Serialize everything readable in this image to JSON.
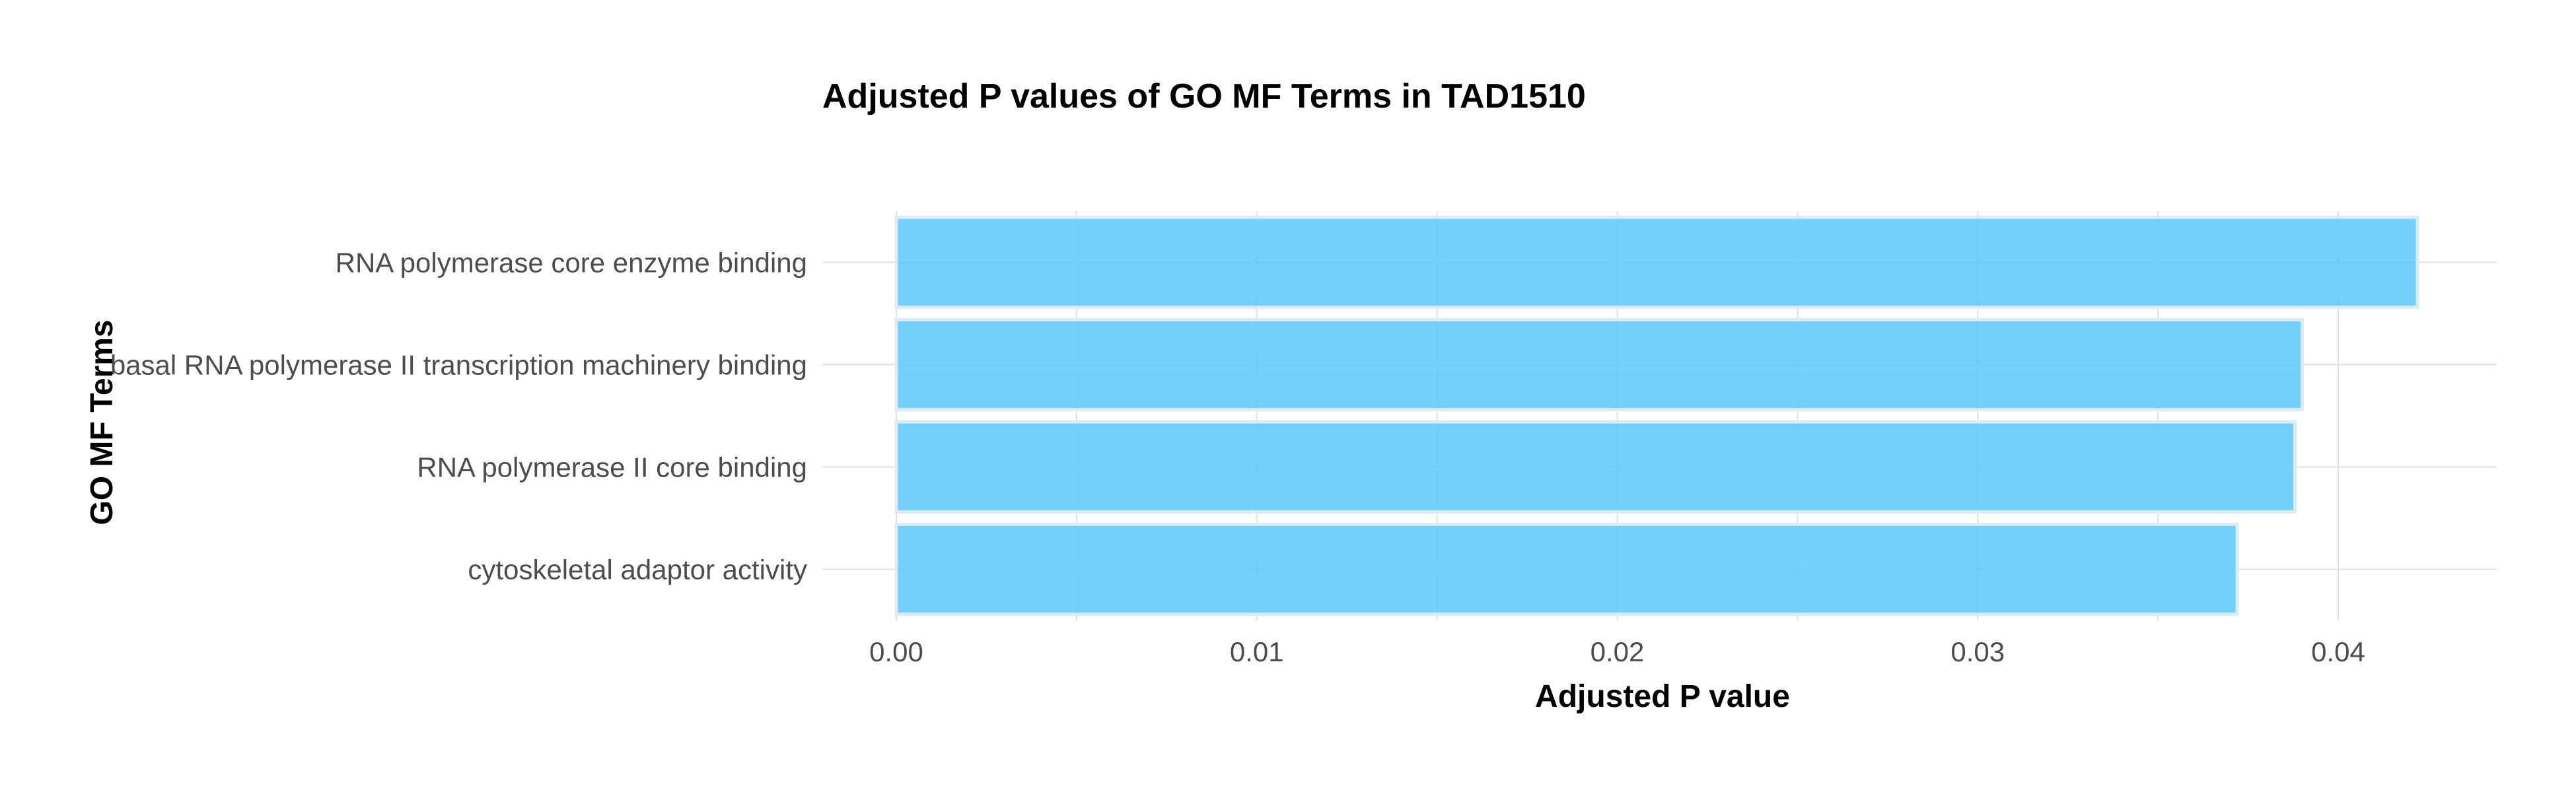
{
  "chart_data": {
    "type": "bar",
    "orientation": "horizontal",
    "title": "Adjusted P values of GO MF Terms in TAD1510",
    "xlabel": "Adjusted P value",
    "ylabel": "GO MF Terms",
    "categories": [
      "RNA polymerase core enzyme binding",
      "basal RNA polymerase II transcription machinery binding",
      "RNA polymerase II core binding",
      "cytoskeletal adaptor activity"
    ],
    "values": [
      0.0422,
      0.039,
      0.0388,
      0.0372
    ],
    "xlim": [
      0,
      0.0445
    ],
    "xticks": [
      "0.00",
      "0.01",
      "0.02",
      "0.03",
      "0.04"
    ],
    "xtick_values": [
      0,
      0.01,
      0.02,
      0.03,
      0.04
    ],
    "grid": true,
    "bar_color": "#5bc8fa",
    "bar_outline_color": "#dcecf7",
    "grid_color": "#e0e0e0"
  }
}
